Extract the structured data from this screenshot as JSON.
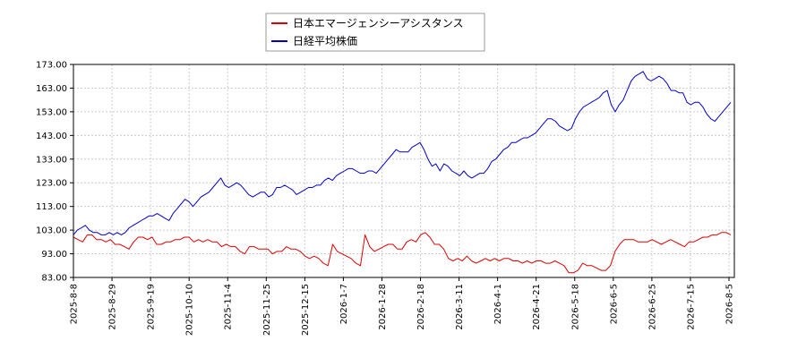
{
  "chart_data": {
    "type": "line",
    "title": "",
    "xlabel": "",
    "ylabel": "",
    "ylim": [
      83,
      173
    ],
    "yticks": [
      "83.00",
      "93.00",
      "103.00",
      "113.00",
      "123.00",
      "133.00",
      "143.00",
      "153.00",
      "163.00",
      "173.00"
    ],
    "xticks": [
      "2025-8-8",
      "2025-8-29",
      "2025-9-19",
      "2025-10-10",
      "2025-11-4",
      "2025-11-25",
      "2025-12-15",
      "2026-1-7",
      "2026-1-28",
      "2026-2-18",
      "2026-3-11",
      "2026-4-1",
      "2026-4-21",
      "2026-5-18",
      "2026-6-5",
      "2026-6-25",
      "2026-7-15",
      "2026-8-5"
    ],
    "grid": true,
    "legend_position": "top-center",
    "series": [
      {
        "name": "日本エマージェンシーアシスタンス",
        "color": "#dd0000",
        "values": [
          100,
          99,
          98,
          101,
          101,
          99,
          99,
          98,
          99,
          97,
          97,
          96,
          95,
          98,
          100,
          100,
          99,
          100,
          97,
          97,
          98,
          98,
          99,
          99,
          100,
          100,
          98,
          99,
          98,
          99,
          98,
          98,
          96,
          97,
          96,
          96,
          94,
          93,
          96,
          96,
          95,
          95,
          95,
          93,
          94,
          94,
          96,
          95,
          95,
          94,
          92,
          91,
          92,
          91,
          89,
          88,
          97,
          94,
          93,
          92,
          91,
          89,
          88,
          101,
          96,
          94,
          95,
          96,
          97,
          97,
          95,
          95,
          98,
          99,
          98,
          101,
          102,
          100,
          97,
          97,
          95,
          91,
          90,
          91,
          90,
          92,
          90,
          89,
          90,
          91,
          90,
          91,
          90,
          91,
          91,
          90,
          90,
          89,
          90,
          89,
          90,
          90,
          89,
          89,
          90,
          89,
          88,
          85,
          85,
          86,
          89,
          88,
          88,
          87,
          86,
          86,
          88,
          94,
          97,
          99,
          99,
          99,
          98,
          98,
          98,
          99,
          98,
          97,
          98,
          99,
          98,
          97,
          96,
          98,
          98,
          99,
          100,
          100,
          101,
          101,
          102,
          102,
          101
        ]
      },
      {
        "name": "日経平均株価",
        "color": "#0000cc",
        "values": [
          101,
          103,
          104,
          105,
          103,
          102,
          102,
          101,
          101,
          102,
          101,
          102,
          101,
          102,
          104,
          105,
          106,
          107,
          108,
          109,
          109,
          110,
          109,
          108,
          107,
          110,
          112,
          114,
          116,
          115,
          113,
          115,
          117,
          118,
          119,
          121,
          123,
          125,
          122,
          121,
          122,
          123,
          122,
          120,
          118,
          117,
          118,
          119,
          119,
          117,
          118,
          121,
          121,
          122,
          121,
          120,
          118,
          119,
          120,
          121,
          121,
          122,
          122,
          124,
          125,
          124,
          126,
          127,
          128,
          129,
          129,
          128,
          127,
          127,
          128,
          128,
          127,
          129,
          131,
          133,
          135,
          137,
          136,
          136,
          136,
          138,
          139,
          140,
          137,
          133,
          130,
          131,
          128,
          131,
          130,
          128,
          127,
          126,
          128,
          126,
          125,
          126,
          127,
          127,
          129,
          132,
          133,
          135,
          137,
          138,
          140,
          140,
          141,
          142,
          142,
          143,
          144,
          146,
          148,
          150,
          150,
          149,
          147,
          146,
          145,
          146,
          150,
          153,
          155,
          156,
          157,
          158,
          159,
          161,
          162,
          156,
          153,
          156,
          158,
          162,
          166,
          168,
          169,
          170,
          167,
          166,
          167,
          168,
          167,
          165,
          162,
          162,
          161,
          161,
          157,
          156,
          157,
          157,
          155,
          152,
          150,
          149,
          151,
          153,
          155,
          157
        ]
      }
    ]
  }
}
